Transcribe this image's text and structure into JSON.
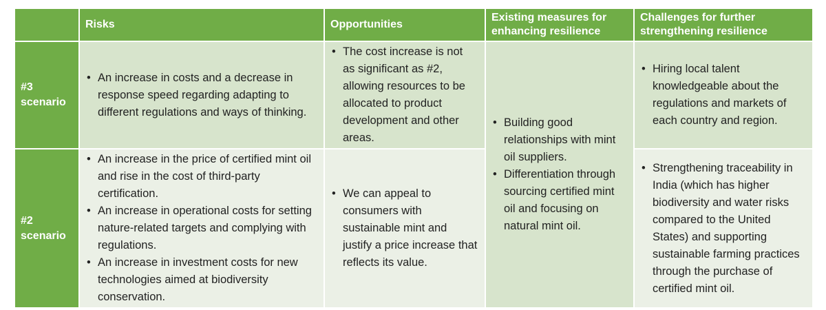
{
  "headers": {
    "risks": "Risks",
    "opportunities": "Opportunities",
    "existing_measures": "Existing measures for enhancing resilience",
    "challenges": "Challenges for further strengthening resilience"
  },
  "rows": {
    "scenario3": {
      "label": "#3 scenario",
      "risks": [
        "An increase in costs and a decrease in response speed regarding adapting to different regulations and ways of thinking."
      ],
      "opportunities": [
        "The cost increase is not as significant as #2, allowing resources to be allocated to product development and other areas."
      ],
      "challenges": [
        "Hiring local talent knowledgeable about the regulations and markets of each country and region."
      ]
    },
    "scenario2": {
      "label": "#2 scenario",
      "risks": [
        "An increase in the price of certified mint oil and rise in the cost of third-party certification.",
        "An increase in operational costs for setting nature-related targets and complying with regulations.",
        "An increase in investment costs for new technologies aimed at biodiversity conservation."
      ],
      "opportunities": [
        "We can appeal to consumers with sustainable mint and justify a price increase that reflects its value."
      ],
      "challenges": [
        "Strengthening traceability in India (which has higher biodiversity and water risks compared to the United States) and supporting sustainable farming practices through the purchase of certified mint oil."
      ]
    }
  },
  "shared_measures": [
    "Building good relationships with mint oil suppliers.",
    "Differentiation through sourcing certified mint oil and focusing on natural mint oil."
  ]
}
